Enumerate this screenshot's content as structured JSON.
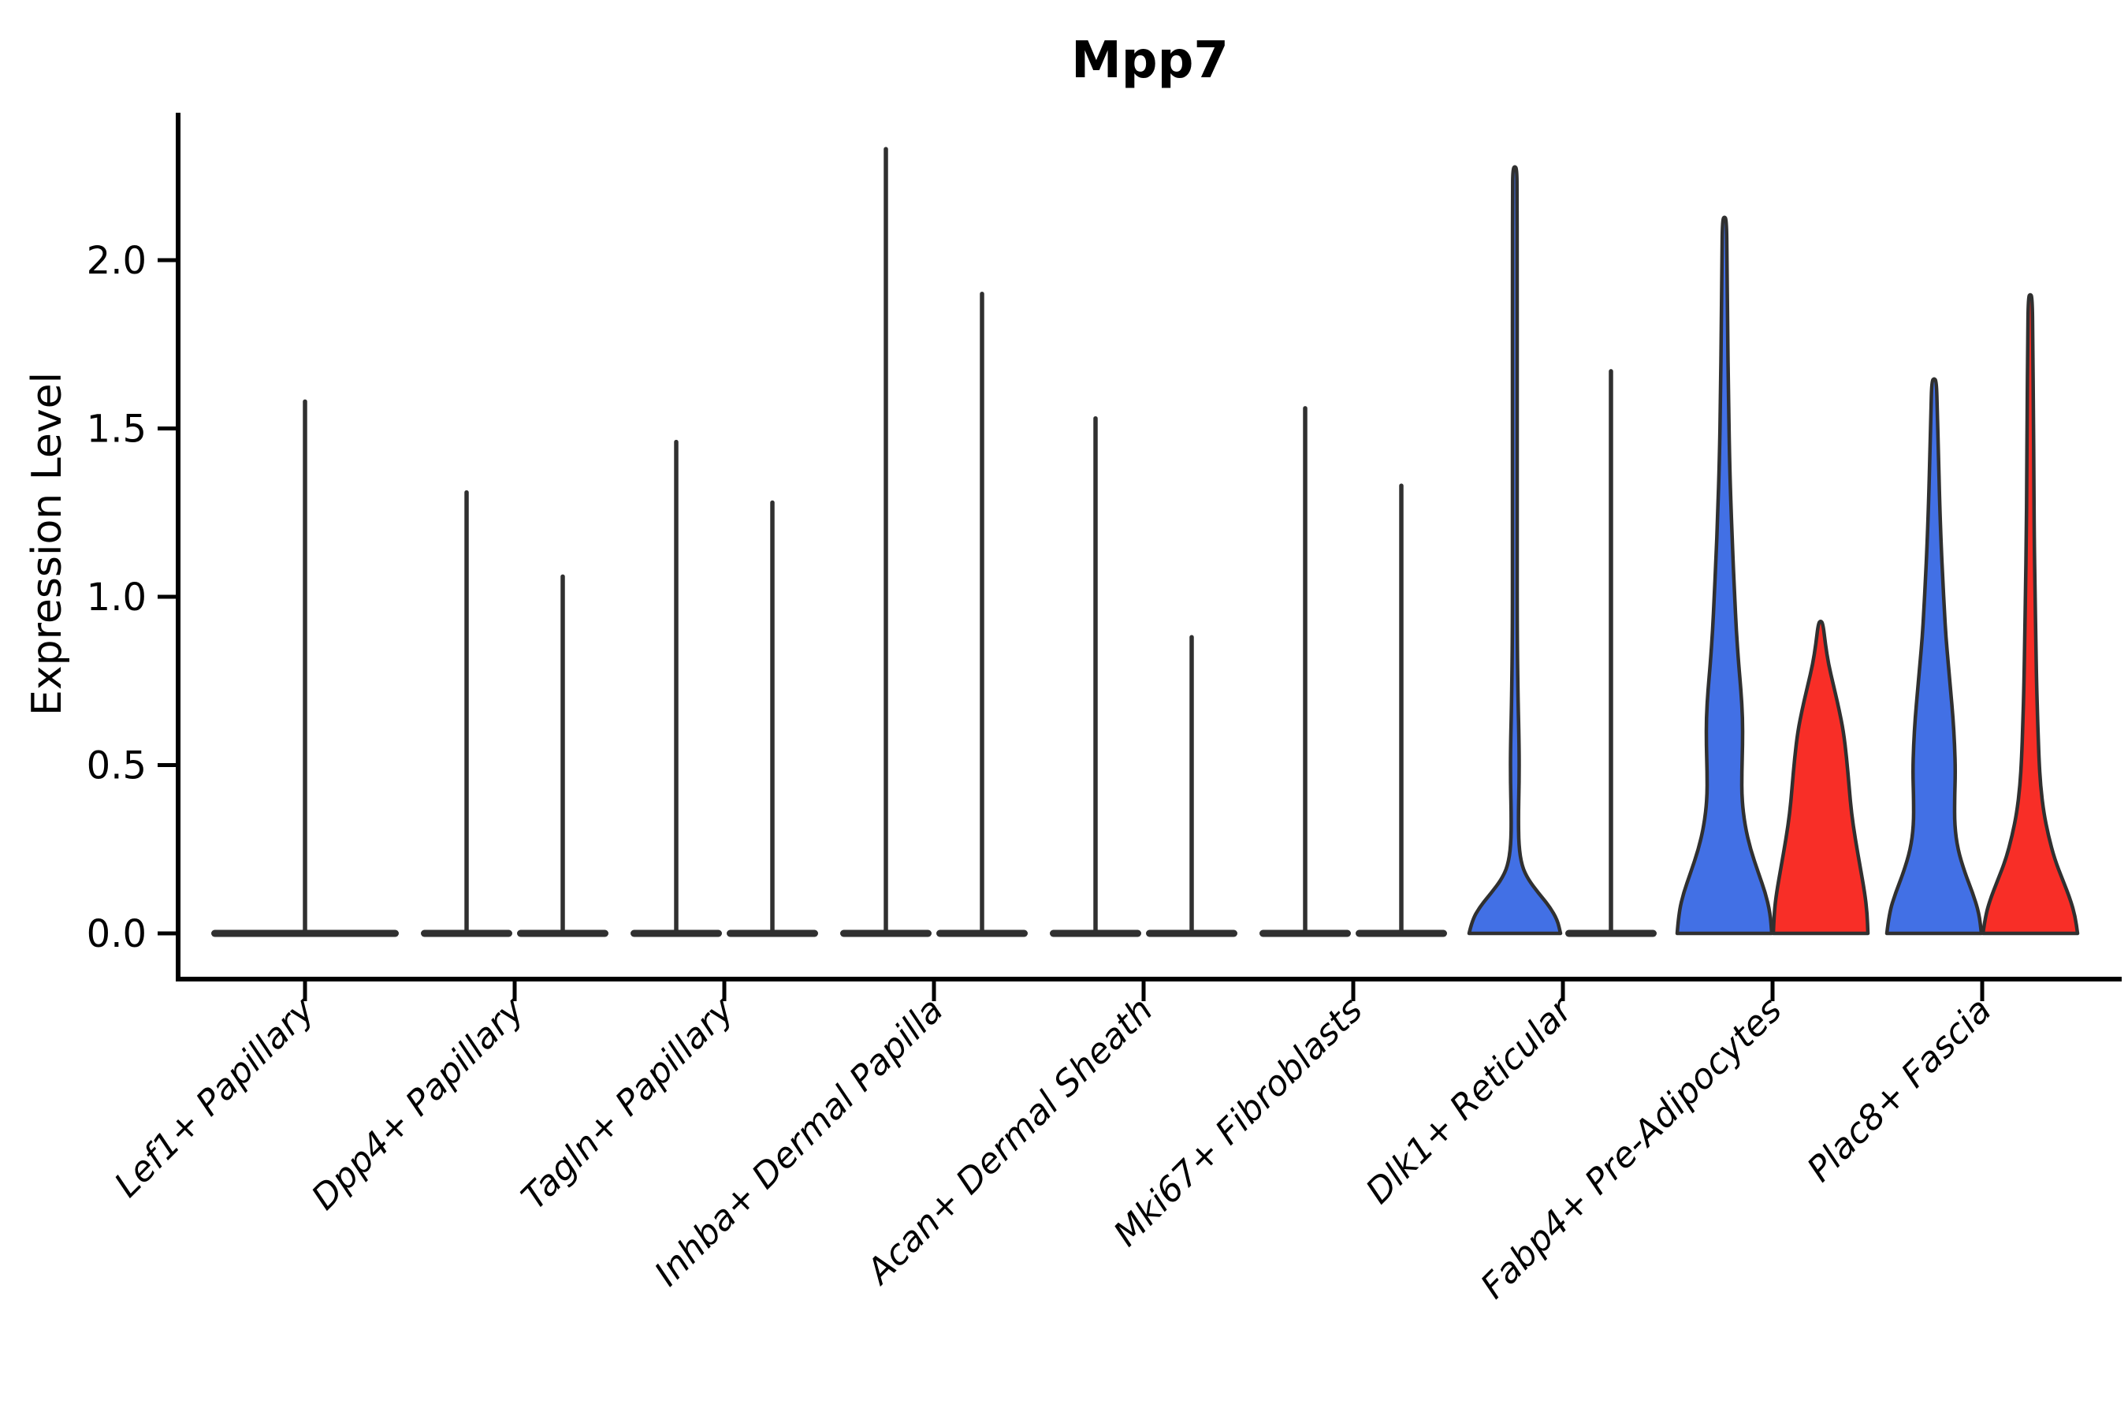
{
  "chart_data": {
    "type": "violin",
    "title": "Mpp7",
    "ylabel": "Expression Level",
    "xlabel": "",
    "yticks": [
      "0.0",
      "0.5",
      "1.0",
      "1.5",
      "2.0"
    ],
    "ytick_values": [
      0,
      0.5,
      1.0,
      1.5,
      2.0
    ],
    "ylim": [
      -0.13,
      2.44
    ],
    "grid": false,
    "legend": "none",
    "x_label_rotation_deg": 45,
    "spines": [
      "left",
      "bottom"
    ],
    "colors": {
      "blue": "#4270E5",
      "red": "#F82E27",
      "outline": "#303030",
      "single": "#303030",
      "axis": "#000000"
    },
    "series": [
      {
        "key": "blue",
        "color": "#4270E5"
      },
      {
        "key": "red",
        "color": "#F82E27"
      }
    ],
    "violins": [
      {
        "label": "Lef1+ Papillary",
        "groups": [
          {
            "series": "single",
            "layout": "full",
            "filled": false,
            "max_expression": 1.58,
            "density": "flat-at-zero"
          }
        ]
      },
      {
        "label": "Dpp4+ Papillary",
        "groups": [
          {
            "series": "blue",
            "layout": "left",
            "filled": false,
            "max_expression": 1.31,
            "density": "flat-at-zero"
          },
          {
            "series": "red",
            "layout": "right",
            "filled": false,
            "max_expression": 1.06,
            "density": "flat-at-zero"
          }
        ]
      },
      {
        "label": "Tagln+ Papillary",
        "groups": [
          {
            "series": "blue",
            "layout": "left",
            "filled": false,
            "max_expression": 1.46,
            "density": "flat-at-zero"
          },
          {
            "series": "red",
            "layout": "right",
            "filled": false,
            "max_expression": 1.28,
            "density": "flat-at-zero"
          }
        ]
      },
      {
        "label": "Inhba+ Dermal Papilla",
        "groups": [
          {
            "series": "blue",
            "layout": "left",
            "filled": false,
            "max_expression": 2.33,
            "density": "flat-at-zero"
          },
          {
            "series": "red",
            "layout": "right",
            "filled": false,
            "max_expression": 1.9,
            "density": "flat-at-zero"
          }
        ]
      },
      {
        "label": "Acan+ Dermal Sheath",
        "groups": [
          {
            "series": "blue",
            "layout": "left",
            "filled": false,
            "max_expression": 1.53,
            "density": "flat-at-zero"
          },
          {
            "series": "red",
            "layout": "right",
            "filled": false,
            "max_expression": 0.88,
            "density": "flat-at-zero"
          }
        ]
      },
      {
        "label": "Mki67+ Fibroblasts",
        "groups": [
          {
            "series": "blue",
            "layout": "left",
            "filled": false,
            "max_expression": 1.56,
            "density": "flat-at-zero"
          },
          {
            "series": "red",
            "layout": "right",
            "filled": false,
            "max_expression": 1.33,
            "density": "flat-at-zero"
          }
        ]
      },
      {
        "label": "Dlk1+ Reticular",
        "groups": [
          {
            "series": "blue",
            "layout": "left",
            "filled": true,
            "max_expression": 2.27,
            "density": "low-bump-at-zero",
            "profile": [
              [
                0,
                58
              ],
              [
                0.04,
                54
              ],
              [
                0.08,
                44
              ],
              [
                0.12,
                30
              ],
              [
                0.16,
                17
              ],
              [
                0.2,
                9
              ],
              [
                0.26,
                5
              ],
              [
                0.35,
                4.5
              ],
              [
                0.45,
                5.5
              ],
              [
                0.55,
                5.5
              ],
              [
                0.7,
                4
              ],
              [
                0.9,
                3
              ],
              [
                1.2,
                3
              ],
              [
                1.6,
                3
              ],
              [
                2.0,
                3
              ],
              [
                2.2,
                2.8
              ],
              [
                2.27,
                2.5
              ]
            ]
          },
          {
            "series": "red",
            "layout": "right",
            "filled": false,
            "max_expression": 1.67,
            "density": "flat-at-zero"
          }
        ]
      },
      {
        "label": "Fabp4+ Pre-Adipocytes",
        "groups": [
          {
            "series": "blue",
            "layout": "left",
            "filled": true,
            "max_expression": 2.12,
            "density": "broad-base-bulge",
            "profile": [
              [
                0,
                60
              ],
              [
                0.06,
                58
              ],
              [
                0.12,
                52
              ],
              [
                0.18,
                43
              ],
              [
                0.25,
                33
              ],
              [
                0.32,
                26
              ],
              [
                0.4,
                22
              ],
              [
                0.48,
                22
              ],
              [
                0.56,
                23
              ],
              [
                0.64,
                23
              ],
              [
                0.72,
                21
              ],
              [
                0.8,
                18
              ],
              [
                0.9,
                15
              ],
              [
                1.0,
                13
              ],
              [
                1.1,
                11
              ],
              [
                1.25,
                8.5
              ],
              [
                1.4,
                6.5
              ],
              [
                1.6,
                5
              ],
              [
                1.8,
                4
              ],
              [
                2.0,
                3.2
              ],
              [
                2.12,
                2.6
              ]
            ]
          },
          {
            "series": "red",
            "layout": "right",
            "filled": true,
            "max_expression": 0.92,
            "density": "broad-base",
            "profile": [
              [
                0,
                60
              ],
              [
                0.06,
                59
              ],
              [
                0.12,
                56
              ],
              [
                0.2,
                50
              ],
              [
                0.28,
                44
              ],
              [
                0.36,
                39
              ],
              [
                0.44,
                36
              ],
              [
                0.52,
                33
              ],
              [
                0.6,
                29
              ],
              [
                0.67,
                23
              ],
              [
                0.74,
                16
              ],
              [
                0.8,
                10
              ],
              [
                0.86,
                6
              ],
              [
                0.92,
                3
              ]
            ]
          }
        ]
      },
      {
        "label": "Plac8+ Fascia",
        "groups": [
          {
            "series": "blue",
            "layout": "left",
            "filled": true,
            "max_expression": 1.64,
            "density": "broad-base-bulge",
            "profile": [
              [
                0,
                60
              ],
              [
                0.06,
                57
              ],
              [
                0.12,
                49
              ],
              [
                0.18,
                39
              ],
              [
                0.25,
                30
              ],
              [
                0.32,
                26
              ],
              [
                0.4,
                26
              ],
              [
                0.48,
                27
              ],
              [
                0.56,
                26
              ],
              [
                0.64,
                24
              ],
              [
                0.72,
                21
              ],
              [
                0.8,
                18
              ],
              [
                0.88,
                15
              ],
              [
                0.96,
                13
              ],
              [
                1.05,
                11
              ],
              [
                1.15,
                9
              ],
              [
                1.28,
                7
              ],
              [
                1.42,
                5.5
              ],
              [
                1.55,
                4
              ],
              [
                1.64,
                3
              ]
            ]
          },
          {
            "series": "red",
            "layout": "right",
            "filled": true,
            "max_expression": 1.89,
            "density": "broad-base-taper",
            "profile": [
              [
                0,
                60
              ],
              [
                0.05,
                57
              ],
              [
                0.1,
                51
              ],
              [
                0.16,
                41
              ],
              [
                0.22,
                31
              ],
              [
                0.29,
                23
              ],
              [
                0.36,
                17
              ],
              [
                0.44,
                13
              ],
              [
                0.52,
                11
              ],
              [
                0.62,
                9.5
              ],
              [
                0.74,
                8
              ],
              [
                0.88,
                7
              ],
              [
                1.02,
                6
              ],
              [
                1.18,
                5
              ],
              [
                1.35,
                4.5
              ],
              [
                1.55,
                4
              ],
              [
                1.75,
                3.2
              ],
              [
                1.89,
                2.6
              ]
            ]
          }
        ]
      }
    ]
  }
}
